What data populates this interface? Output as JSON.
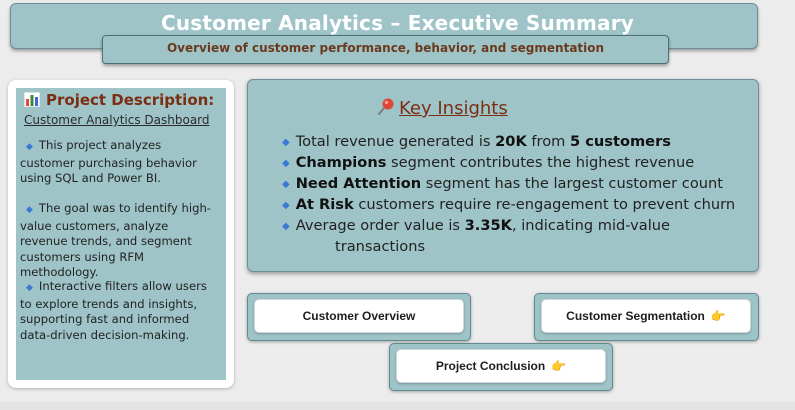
{
  "header": {
    "title": "Customer Analytics – Executive Summary",
    "subtitle": "Overview of customer performance, behavior, and segmentation"
  },
  "description": {
    "title": "Project Description:",
    "title_icon": "bar-chart-icon",
    "subtitle": "Customer Analytics Dashboard",
    "paragraphs": [
      "This project analyzes customer purchasing behavior using SQL and Power BI.",
      "The goal was to identify high-value customers, analyze revenue trends, and segment customers using RFM methodology.",
      "Interactive filters allow users to explore trends and insights, supporting fast and informed data-driven decision-making."
    ]
  },
  "insights": {
    "title": "Key Insights",
    "title_icon": "pushpin-icon",
    "items": [
      {
        "pre": "Total revenue generated is ",
        "b1": "20K",
        "mid": " from ",
        "b2": "5 customers",
        "post": ""
      },
      {
        "pre": "",
        "b1": "Champions",
        "mid": " segment contributes the highest revenue",
        "b2": "",
        "post": ""
      },
      {
        "pre": "",
        "b1": "Need Attention",
        "mid": " segment has the largest customer count",
        "b2": "",
        "post": ""
      },
      {
        "pre": "",
        "b1": "At Risk",
        "mid": " customers require re-engagement to prevent churn",
        "b2": "",
        "post": ""
      },
      {
        "pre": "Average order value is ",
        "b1": "3.35K",
        "mid": ", indicating mid-value",
        "b2": "",
        "post": ""
      }
    ],
    "continuation": "transactions"
  },
  "nav": {
    "customer_overview": "Customer Overview",
    "customer_segmentation": "Customer Segmentation",
    "project_conclusion": "Project Conclusion",
    "hand_icon": "👉"
  },
  "colors": {
    "panel": "#9fc4c8",
    "accent_text": "#7a2e12",
    "bullet": "#3a78d6"
  }
}
